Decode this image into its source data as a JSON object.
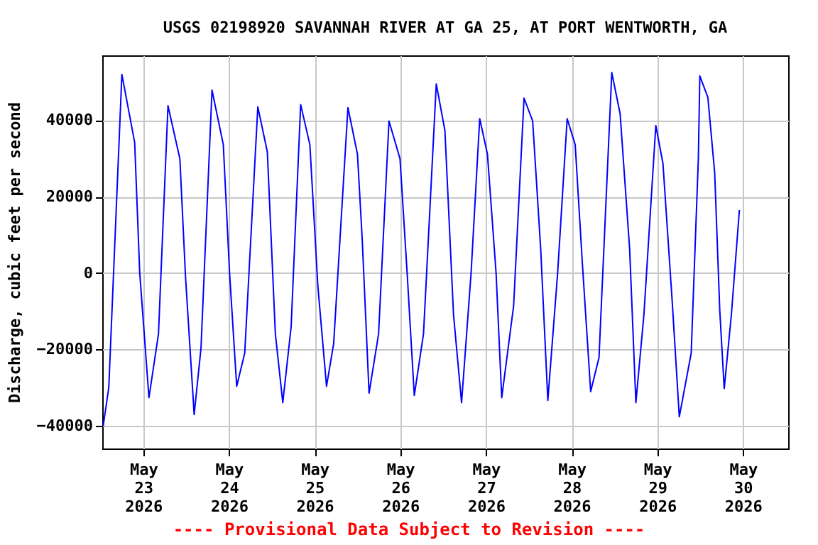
{
  "chart_data": {
    "type": "line",
    "title": "USGS 02198920 SAVANNAH RIVER AT GA 25, AT PORT WENTWORTH, GA",
    "ylabel": "Discharge, cubic feet per second",
    "annotations": [
      "---- Provisional Data Subject to Revision ----"
    ],
    "x": [
      "2026-05-22T12:45",
      "2026-05-22T14:20",
      "2026-05-22T18:00",
      "2026-05-22T21:35",
      "2026-05-22T23:00",
      "2026-05-23T01:35",
      "2026-05-23T04:15",
      "2026-05-23T06:55",
      "2026-05-23T10:15",
      "2026-05-23T11:50",
      "2026-05-23T14:15",
      "2026-05-23T16:10",
      "2026-05-23T19:15",
      "2026-05-23T22:25",
      "2026-05-24T00:10",
      "2026-05-24T02:10",
      "2026-05-24T04:25",
      "2026-05-24T08:05",
      "2026-05-24T10:45",
      "2026-05-24T13:00",
      "2026-05-24T15:05",
      "2026-05-24T17:25",
      "2026-05-24T20:05",
      "2026-05-24T22:40",
      "2026-05-25T00:55",
      "2026-05-25T03:20",
      "2026-05-25T05:20",
      "2026-05-25T09:20",
      "2026-05-25T12:00",
      "2026-05-25T13:20",
      "2026-05-25T15:15",
      "2026-05-25T17:55",
      "2026-05-25T20:50",
      "2026-05-25T23:55",
      "2026-05-26T01:55",
      "2026-05-26T03:55",
      "2026-05-26T06:30",
      "2026-05-26T10:05",
      "2026-05-26T12:30",
      "2026-05-26T14:55",
      "2026-05-26T17:10",
      "2026-05-26T19:50",
      "2026-05-26T22:15",
      "2026-05-27T00:25",
      "2026-05-27T02:50",
      "2026-05-27T04:25",
      "2026-05-27T07:45",
      "2026-05-27T10:40",
      "2026-05-27T13:05",
      "2026-05-27T15:20",
      "2026-05-27T17:20",
      "2026-05-27T20:05",
      "2026-05-27T22:45",
      "2026-05-28T01:00",
      "2026-05-28T03:00",
      "2026-05-28T05:20",
      "2026-05-28T07:40",
      "2026-05-28T11:15",
      "2026-05-28T13:35",
      "2026-05-28T16:15",
      "2026-05-28T18:00",
      "2026-05-28T20:15",
      "2026-05-28T23:35",
      "2026-05-29T01:35",
      "2026-05-29T04:10",
      "2026-05-29T06:10",
      "2026-05-29T09:30",
      "2026-05-29T11:30",
      "2026-05-29T11:55",
      "2026-05-29T14:10",
      "2026-05-29T16:05",
      "2026-05-29T17:30",
      "2026-05-29T18:45",
      "2026-05-29T20:45",
      "2026-05-29T23:00"
    ],
    "series": [
      {
        "color": "#0000ff",
        "values": [
          -40200,
          -30000,
          52000,
          34200,
          0,
          -32700,
          -16000,
          43800,
          29900,
          -1100,
          -37100,
          -19700,
          47900,
          33600,
          0,
          -29700,
          -21000,
          43500,
          31700,
          -16000,
          -34000,
          -14100,
          44100,
          33600,
          -3600,
          -29700,
          -18500,
          43300,
          31100,
          8800,
          -31500,
          -16000,
          39800,
          29900,
          0,
          -32100,
          -16000,
          49500,
          37300,
          -11000,
          -34000,
          0,
          40400,
          31100,
          0,
          -32700,
          -8600,
          45800,
          39800,
          6300,
          -33400,
          0,
          40400,
          33600,
          2600,
          -31100,
          -22200,
          52500,
          41700,
          6300,
          -34000,
          -11000,
          38600,
          28700,
          -7300,
          -37700,
          -21000,
          29900,
          51600,
          46000,
          26200,
          -9800,
          -30300,
          -11000,
          16500
        ]
      }
    ],
    "xlim": [
      "2026-05-22T12:30",
      "2026-05-30T12:40"
    ],
    "xticks": [
      {
        "value": "2026-05-23",
        "label": "May 23 2026"
      },
      {
        "value": "2026-05-24",
        "label": "May 24 2026"
      },
      {
        "value": "2026-05-25",
        "label": "May 25 2026"
      },
      {
        "value": "2026-05-26",
        "label": "May 26 2026"
      },
      {
        "value": "2026-05-27",
        "label": "May 27 2026"
      },
      {
        "value": "2026-05-28",
        "label": "May 28 2026"
      },
      {
        "value": "2026-05-29",
        "label": "May 29 2026"
      },
      {
        "value": "2026-05-30",
        "label": "May 30 2026"
      }
    ],
    "ylim": [
      -46000,
      57000
    ],
    "yticks": [
      -40000,
      -20000,
      0,
      20000,
      40000
    ],
    "grid": true,
    "line_style": "solid",
    "marker": "none"
  }
}
